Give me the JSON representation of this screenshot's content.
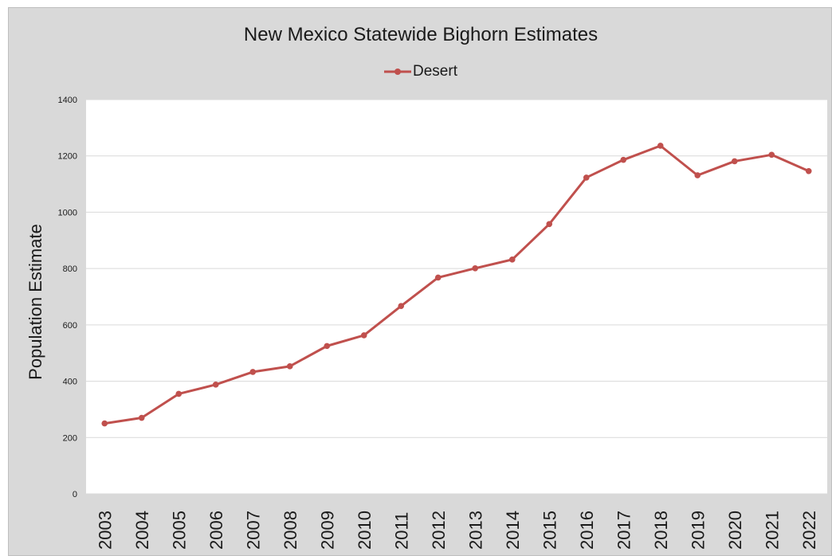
{
  "colors": {
    "frame": "#d9d9d9",
    "plot_area": "#ffffff",
    "gridline": "#d9d9d9",
    "series": "#c0504d",
    "text": "#1a1a1a"
  },
  "chart_data": {
    "type": "line",
    "title": "New Mexico Statewide Bighorn Estimates",
    "xlabel": "",
    "ylabel": "Population Estimate",
    "ylim": [
      0,
      1400
    ],
    "yticks": [
      "0",
      "200",
      "400",
      "600",
      "800",
      "1000",
      "1200",
      "1400"
    ],
    "grid": true,
    "legend_position": "top-center",
    "categories": [
      "2003",
      "2004",
      "2005",
      "2006",
      "2007",
      "2008",
      "2009",
      "2010",
      "2011",
      "2012",
      "2013",
      "2014",
      "2015",
      "2016",
      "2017",
      "2018",
      "2019",
      "2020",
      "2021",
      "2022"
    ],
    "series": [
      {
        "name": "Desert",
        "values": [
          250,
          270,
          355,
          388,
          433,
          453,
          525,
          563,
          667,
          768,
          801,
          832,
          958,
          1123,
          1186,
          1236,
          1131,
          1181,
          1204,
          1146
        ]
      }
    ]
  }
}
